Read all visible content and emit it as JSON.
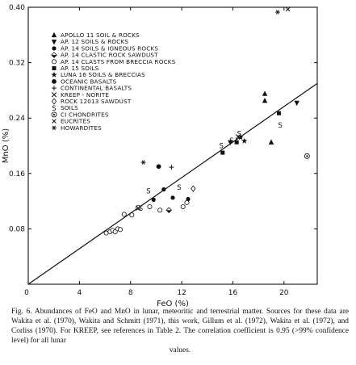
{
  "chart_data": {
    "type": "scatter",
    "xlabel": "FeO (%)",
    "ylabel": "MnO (%)",
    "xlim": [
      0,
      22.6
    ],
    "ylim": [
      0,
      0.4
    ],
    "xticks": [
      4,
      8,
      12,
      16,
      20
    ],
    "xtick_labels": [
      "4",
      "8",
      "12",
      "16",
      "20"
    ],
    "yticks": [
      0.08,
      0.16,
      0.24,
      0.32,
      0.4
    ],
    "ytick_labels": [
      "0.08",
      "0.16",
      "0.24",
      "0.32",
      "0.40"
    ],
    "legend_position": "top-left",
    "series": [
      {
        "name": "APOLLO 11 SOIL & ROCKS",
        "marker": "triangle-up",
        "points": [
          [
            18.5,
            0.265
          ],
          [
            18.5,
            0.275
          ],
          [
            19.0,
            0.205
          ]
        ]
      },
      {
        "name": "AP. 12 SOILS & ROCKS",
        "marker": "triangle-down",
        "points": [
          [
            21.0,
            0.262
          ],
          [
            15.8,
            0.205
          ]
        ]
      },
      {
        "name": "AP. 14 SOILS & IGNEOUS ROCKS",
        "marker": "filled-circle",
        "points": [
          [
            9.8,
            0.122
          ],
          [
            10.6,
            0.137
          ],
          [
            11.3,
            0.125
          ],
          [
            12.5,
            0.123
          ]
        ]
      },
      {
        "name": "AP. 14 CLASTIC ROCK SAWDUST",
        "marker": "half-diamond",
        "points": [
          [
            11.0,
            0.107
          ]
        ]
      },
      {
        "name": "AP. 14 CLASTS FROM BRECCIA ROCKS",
        "marker": "open-circle",
        "points": [
          [
            6.1,
            0.074
          ],
          [
            6.4,
            0.076
          ],
          [
            6.6,
            0.078
          ],
          [
            6.8,
            0.076
          ],
          [
            7.0,
            0.08
          ],
          [
            7.2,
            0.079
          ],
          [
            7.5,
            0.101
          ],
          [
            8.1,
            0.1
          ],
          [
            8.6,
            0.111
          ],
          [
            9.5,
            0.112
          ],
          [
            10.3,
            0.107
          ],
          [
            12.1,
            0.112
          ],
          [
            12.4,
            0.118
          ]
        ]
      },
      {
        "name": "AP. 15 SOILS",
        "marker": "filled-square",
        "points": [
          [
            16.3,
            0.205
          ],
          [
            19.6,
            0.247
          ],
          [
            15.2,
            0.19
          ]
        ]
      },
      {
        "name": "LUNA 16 SOILS & BRECCIAS",
        "marker": "star",
        "points": [
          [
            16.6,
            0.212
          ],
          [
            16.9,
            0.207
          ]
        ]
      },
      {
        "name": "OCEANIC BASALTS",
        "marker": "filled-circle-large",
        "points": [
          [
            10.2,
            0.17
          ]
        ]
      },
      {
        "name": "CONTINENTAL BASALTS",
        "marker": "plus",
        "points": [
          [
            11.2,
            0.169
          ]
        ]
      },
      {
        "name": "KREEP - NORITE",
        "marker": "x",
        "points": [
          [
            8.6,
            0.11
          ],
          [
            16.4,
            0.213
          ]
        ]
      },
      {
        "name": "ROCK 12013 SAWDUST",
        "marker": "open-diamond",
        "points": [
          [
            12.9,
            0.138
          ]
        ]
      },
      {
        "name": "SOILS",
        "marker": "S",
        "points": [
          [
            15.1,
            0.2
          ],
          [
            15.9,
            0.208
          ],
          [
            16.5,
            0.218
          ],
          [
            19.7,
            0.23
          ],
          [
            11.8,
            0.14
          ],
          [
            9.4,
            0.135
          ],
          [
            8.8,
            0.11
          ]
        ]
      },
      {
        "name": "CI CHONDRITES",
        "marker": "circle-dot",
        "points": [
          [
            21.8,
            0.185
          ]
        ]
      },
      {
        "name": "EUCRITES",
        "marker": "x-small",
        "points": [
          [
            20.3,
            0.397
          ]
        ]
      },
      {
        "name": "HOWARDITES",
        "marker": "asterisk",
        "points": [
          [
            19.5,
            0.393
          ],
          [
            9.0,
            0.176
          ]
        ]
      }
    ],
    "fit_line": {
      "x": [
        0,
        22.6
      ],
      "y": [
        0,
        0.29
      ]
    }
  },
  "caption": {
    "body": "Fig. 6. Abundances of FeO and MnO in lunar, meteoritic and terrestrial matter. Sources for these data are Wakita et al. (1970), Wakita and Schmitt (1971), this work, Gillum et al. (1972), Wakita et al. (1972), and Corliss (1970). For KREEP, see references in Table 2. The correlation coefficient is 0.95 (>99% confidence level) for all lunar",
    "end": "values."
  }
}
